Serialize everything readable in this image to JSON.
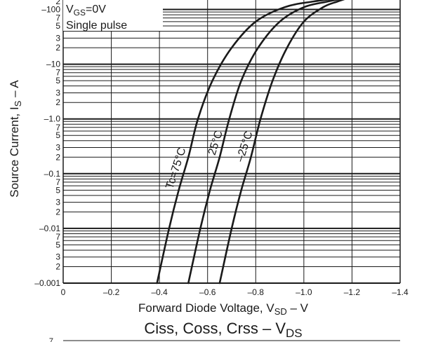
{
  "chart_data": {
    "type": "line",
    "xlabel": "Forward Diode Voltage, V",
    "xlabel_sub": "SD",
    "xlabel_unit": "  –  V",
    "ylabel": "Source Current, I",
    "ylabel_sub": "S",
    "ylabel_unit": "  –  A",
    "x_ticks": [
      "0",
      "–0.2",
      "–0.4",
      "–0.6",
      "–0.8",
      "–1.0",
      "–1.2",
      "–1.4"
    ],
    "xlim": [
      0,
      -1.4
    ],
    "y_scale": "log",
    "ylim": [
      -0.001,
      -200
    ],
    "y_decade_labels": [
      "–0.001",
      "–0.01",
      "–0.1",
      "–1.0",
      "–10",
      "–100"
    ],
    "y_minor_labels": [
      "2",
      "3",
      "5",
      "7"
    ],
    "y_top_label": "2",
    "grid": true,
    "annotations": {
      "condition_1_main": "V",
      "condition_1_sub": "GS",
      "condition_1_rest": "=0V",
      "condition_2": "Single pulse"
    },
    "series": [
      {
        "name": "Tc=75°C",
        "x": [
          -0.39,
          -0.44,
          -0.48,
          -0.52,
          -0.56,
          -0.62,
          -0.7,
          -0.8,
          -0.92,
          -1.04,
          -1.2
        ],
        "y": [
          -0.001,
          -0.01,
          -0.05,
          -0.2,
          -1.0,
          -5,
          -20,
          -60,
          -110,
          -140,
          -170
        ]
      },
      {
        "name": "25°C",
        "x": [
          -0.52,
          -0.57,
          -0.61,
          -0.65,
          -0.69,
          -0.74,
          -0.81,
          -0.9,
          -1.0,
          -1.1,
          -1.2
        ],
        "y": [
          -0.001,
          -0.01,
          -0.05,
          -0.2,
          -1.0,
          -5,
          -20,
          -60,
          -110,
          -140,
          -170
        ]
      },
      {
        "name": "–25°C",
        "x": [
          -0.65,
          -0.7,
          -0.74,
          -0.78,
          -0.82,
          -0.87,
          -0.93,
          -1.0,
          -1.08,
          -1.14,
          -1.2
        ],
        "y": [
          -0.001,
          -0.01,
          -0.05,
          -0.2,
          -1.0,
          -5,
          -20,
          -60,
          -110,
          -140,
          -170
        ]
      }
    ],
    "next_chart_title_main": "Ciss,  Coss,  Crss  –  V",
    "next_chart_title_sub": "DS",
    "next_chart_first_tick": "7"
  }
}
